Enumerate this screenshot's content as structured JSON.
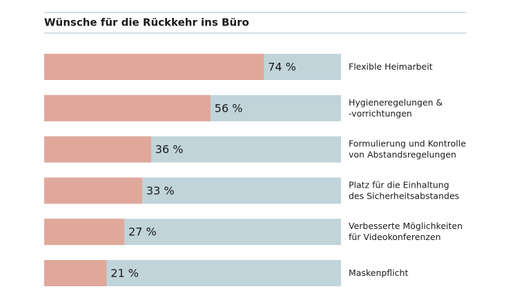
{
  "chart_data": {
    "type": "bar",
    "orientation": "horizontal",
    "title": "Wünsche für die Rückkehr ins Büro",
    "categories": [
      [
        "Flexible Heimarbeit"
      ],
      [
        "Hygieneregelungen &",
        "-vorrichtungen"
      ],
      [
        "Formulierung und Kontrolle",
        "von Abstandsregelungen"
      ],
      [
        "Platz für die Einhaltung",
        "des Sicherheitsabstandes"
      ],
      [
        "Verbesserte Möglichkeiten",
        "für Videokonferenzen"
      ],
      [
        "Maskenpflicht"
      ]
    ],
    "values": [
      74,
      56,
      36,
      33,
      27,
      21
    ],
    "value_labels": [
      "74 %",
      "56 %",
      "36 %",
      "33 %",
      "27 %",
      "21 %"
    ],
    "color": "#e0a89b",
    "track_color": "#c0d4da",
    "xlim": [
      0,
      100
    ]
  }
}
